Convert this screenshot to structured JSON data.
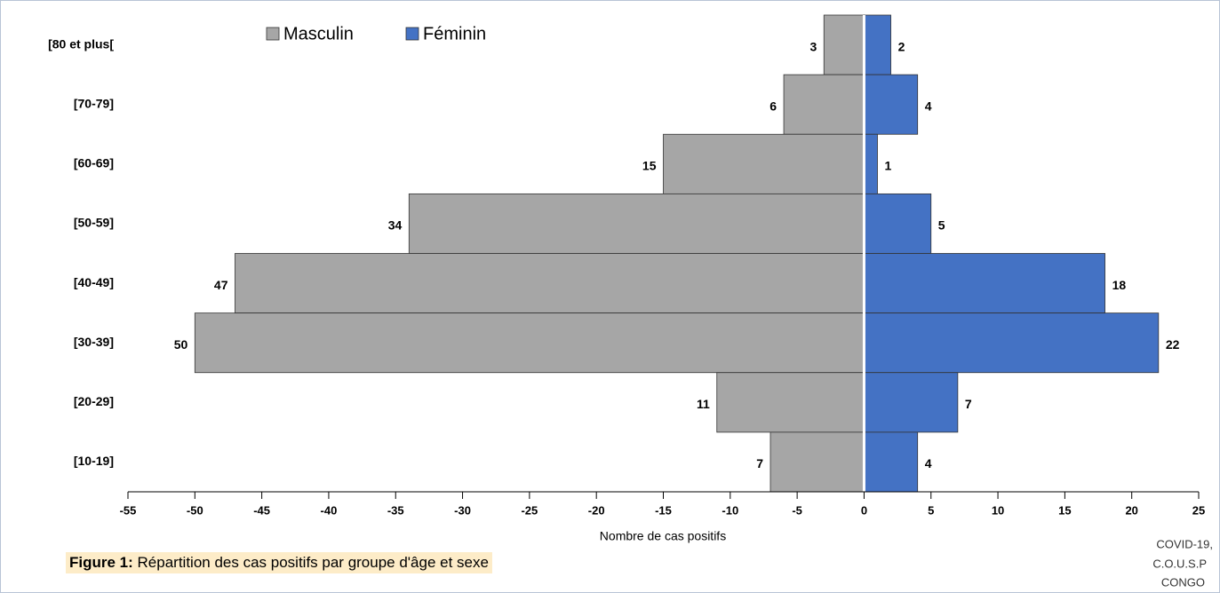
{
  "chart_data": {
    "type": "pyramid",
    "categories": [
      "[80 et plus[",
      "[70-79]",
      "[60-69]",
      "[50-59]",
      "[40-49]",
      "[30-39]",
      "[20-29]",
      "[10-19]"
    ],
    "series": [
      {
        "name": "Masculin",
        "color": "#a6a6a6",
        "values": [
          -3,
          -6,
          -15,
          -34,
          -47,
          -50,
          -11,
          -7
        ],
        "value_labels": [
          "3",
          "6",
          "15",
          "34",
          "47",
          "50",
          "11",
          "7"
        ]
      },
      {
        "name": "Féminin",
        "color": "#4472c4",
        "values": [
          2,
          4,
          1,
          5,
          18,
          22,
          7,
          4
        ]
      }
    ],
    "xlim": [
      -55,
      25
    ],
    "xticks": [
      -55,
      -50,
      -45,
      -40,
      -35,
      -30,
      -25,
      -20,
      -15,
      -10,
      -5,
      0,
      5,
      10,
      15,
      20,
      25
    ],
    "xlabel": "Nombre de cas positifs",
    "legend": "top",
    "figure_label": "Figure 1:",
    "caption": " Répartition des cas positifs par groupe d'âge et sexe",
    "source": [
      "COVID-19,",
      "C.O.U.S.P",
      "CONGO"
    ]
  }
}
